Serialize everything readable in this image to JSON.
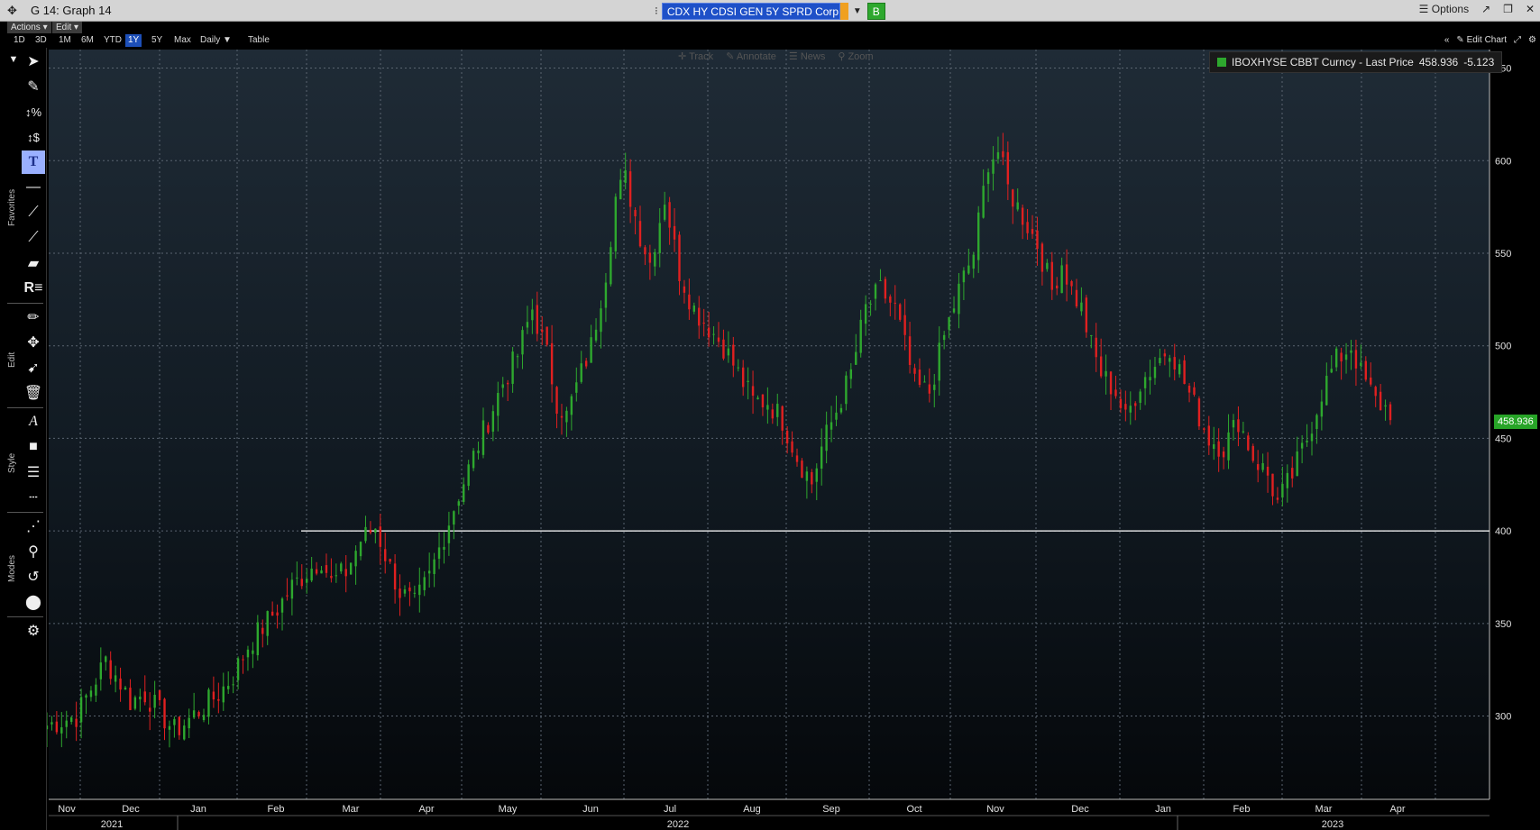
{
  "window": {
    "title": "G 14: Graph 14",
    "ticker": "CDX HY CDSI GEN 5Y SPRD Corp",
    "go_label": "B",
    "options_label": "Options",
    "icons": [
      "move-icon",
      "popout-icon",
      "restore-icon",
      "close-icon"
    ]
  },
  "menu": {
    "actions": "Actions",
    "edit": "Edit"
  },
  "ranges": [
    "1D",
    "3D",
    "1M",
    "6M",
    "YTD",
    "1Y",
    "5Y",
    "Max",
    "Daily",
    "Table"
  ],
  "active_range": "1Y",
  "edit_chart": "Edit Chart",
  "chart_tools": [
    "Track",
    "Annotate",
    "News",
    "Zoom"
  ],
  "side_labels": [
    "Favorites",
    "Edit",
    "Style",
    "Modes"
  ],
  "legend": {
    "label": "IBOXHYSE CBBT Curncy - Last Price",
    "last": "458.936",
    "change": "-5.123",
    "color": "#2ea82e"
  },
  "last_price_badge": "458.936",
  "chart_data": {
    "type": "candlestick",
    "y_ticks": [
      "650",
      "600",
      "550",
      "500",
      "450",
      "400",
      "350",
      "300"
    ],
    "ylim": [
      255,
      660
    ],
    "x_month_labels": [
      "Nov",
      "Dec",
      "Jan",
      "Feb",
      "Mar",
      "Apr",
      "May",
      "Jun",
      "Jul",
      "Aug",
      "Sep",
      "Oct",
      "Nov",
      "Dec",
      "Jan",
      "Feb",
      "Mar",
      "Apr"
    ],
    "x_year_labels": [
      "2021",
      "2022",
      "2023"
    ],
    "horizontal_line": 400,
    "up_color": "#2ea82e",
    "down_color": "#e02020",
    "close_path": [
      [
        0,
        295
      ],
      [
        6,
        300
      ],
      [
        9,
        315
      ],
      [
        12,
        330
      ],
      [
        15,
        318
      ],
      [
        17,
        308
      ],
      [
        20,
        312
      ],
      [
        23,
        302
      ],
      [
        26,
        292
      ],
      [
        28,
        296
      ],
      [
        31,
        303
      ],
      [
        35,
        312
      ],
      [
        38,
        322
      ],
      [
        41,
        338
      ],
      [
        44,
        348
      ],
      [
        47,
        358
      ],
      [
        50,
        370
      ],
      [
        53,
        378
      ],
      [
        56,
        385
      ],
      [
        58,
        372
      ],
      [
        61,
        378
      ],
      [
        64,
        395
      ],
      [
        67,
        402
      ],
      [
        70,
        380
      ],
      [
        72,
        367
      ],
      [
        75,
        360
      ],
      [
        78,
        375
      ],
      [
        81,
        398
      ],
      [
        84,
        420
      ],
      [
        87,
        440
      ],
      [
        90,
        460
      ],
      [
        93,
        480
      ],
      [
        96,
        495
      ],
      [
        99,
        520
      ],
      [
        102,
        495
      ],
      [
        104,
        470
      ],
      [
        106,
        462
      ],
      [
        108,
        478
      ],
      [
        111,
        500
      ],
      [
        114,
        540
      ],
      [
        116,
        580
      ],
      [
        118,
        590
      ],
      [
        121,
        560
      ],
      [
        123,
        545
      ],
      [
        126,
        580
      ],
      [
        129,
        540
      ],
      [
        132,
        520
      ],
      [
        135,
        510
      ],
      [
        138,
        500
      ],
      [
        141,
        485
      ],
      [
        144,
        470
      ],
      [
        147,
        470
      ],
      [
        150,
        460
      ],
      [
        153,
        440
      ],
      [
        156,
        426
      ],
      [
        158,
        445
      ],
      [
        161,
        465
      ],
      [
        164,
        485
      ],
      [
        167,
        520
      ],
      [
        170,
        530
      ],
      [
        173,
        520
      ],
      [
        175,
        500
      ],
      [
        177,
        478
      ],
      [
        180,
        475
      ],
      [
        183,
        505
      ],
      [
        186,
        530
      ],
      [
        189,
        550
      ],
      [
        192,
        600
      ],
      [
        194,
        605
      ],
      [
        196,
        585
      ],
      [
        199,
        570
      ],
      [
        202,
        555
      ],
      [
        205,
        530
      ],
      [
        207,
        545
      ],
      [
        209,
        530
      ],
      [
        211,
        520
      ],
      [
        213,
        500
      ],
      [
        215,
        485
      ],
      [
        218,
        475
      ],
      [
        220,
        460
      ],
      [
        223,
        480
      ],
      [
        226,
        490
      ],
      [
        229,
        500
      ],
      [
        232,
        480
      ],
      [
        235,
        462
      ],
      [
        237,
        450
      ],
      [
        240,
        445
      ],
      [
        243,
        460
      ],
      [
        246,
        440
      ],
      [
        249,
        430
      ],
      [
        251,
        415
      ],
      [
        254,
        430
      ],
      [
        257,
        450
      ],
      [
        260,
        475
      ],
      [
        263,
        492
      ],
      [
        266,
        500
      ],
      [
        268,
        485
      ],
      [
        271,
        470
      ],
      [
        274,
        465
      ]
    ],
    "close_path_x_note": "trading day index 0-274"
  }
}
